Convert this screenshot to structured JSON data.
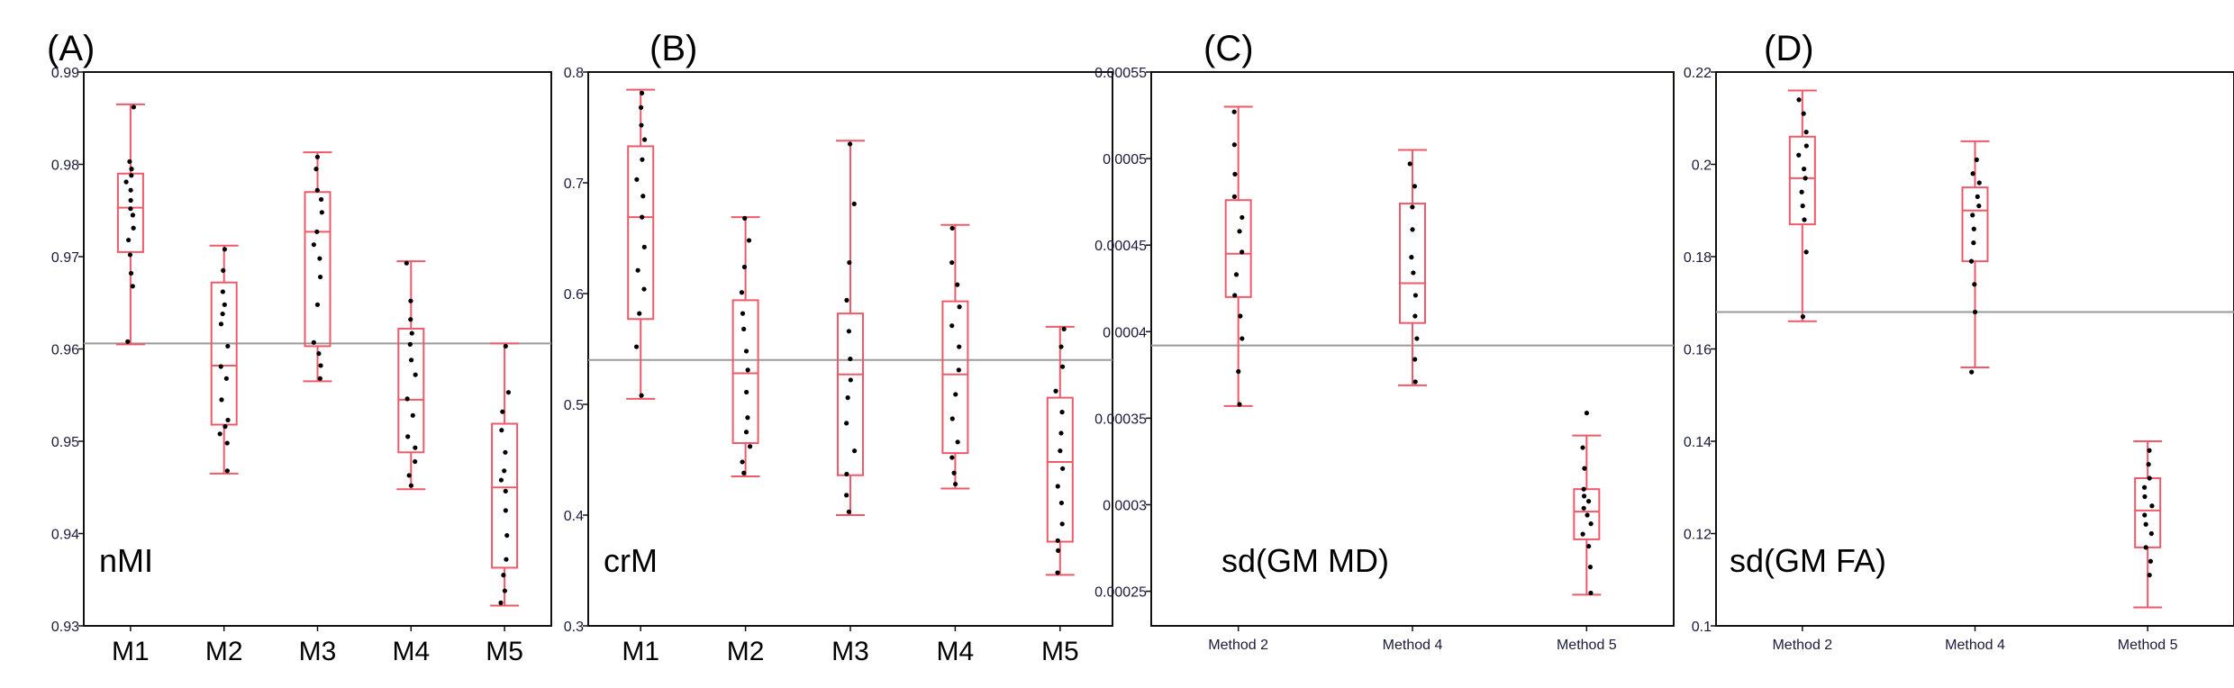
{
  "figure": {
    "colors": {
      "box": "#ef5a6a",
      "ref_line": "#9a9a9a",
      "frame": "#111111",
      "point": "#000000"
    },
    "panels": [
      {
        "panel_label": "(A)",
        "metric_label": "nMI",
        "chart_data": {
          "type": "box",
          "categories": [
            "M1",
            "M2",
            "M3",
            "M4",
            "M5"
          ],
          "ylim": [
            0.93,
            0.99
          ],
          "yticks": [
            0.93,
            0.94,
            0.95,
            0.96,
            0.97,
            0.98,
            0.99
          ],
          "ytick_labels": [
            "0.93",
            "0.94",
            "0.95",
            "0.96",
            "0.97",
            "0.98",
            "0.99"
          ],
          "reference_line": 0.9606,
          "boxes": [
            {
              "min": 0.9605,
              "q1": 0.9705,
              "median": 0.9753,
              "q3": 0.979,
              "max": 0.9865
            },
            {
              "min": 0.9465,
              "q1": 0.9518,
              "median": 0.9582,
              "q3": 0.9672,
              "max": 0.9712
            },
            {
              "min": 0.9565,
              "q1": 0.9603,
              "median": 0.9727,
              "q3": 0.977,
              "max": 0.9813
            },
            {
              "min": 0.9448,
              "q1": 0.9488,
              "median": 0.9545,
              "q3": 0.9622,
              "max": 0.9695
            },
            {
              "min": 0.9322,
              "q1": 0.9363,
              "median": 0.945,
              "q3": 0.9519,
              "max": 0.9606
            }
          ],
          "points": [
            [
              0.9608,
              0.9668,
              0.9682,
              0.9702,
              0.9718,
              0.9731,
              0.9745,
              0.9752,
              0.9761,
              0.9772,
              0.9781,
              0.9788,
              0.9795,
              0.9803,
              0.9862
            ],
            [
              0.9468,
              0.9498,
              0.9508,
              0.9516,
              0.9523,
              0.9545,
              0.9568,
              0.9581,
              0.9603,
              0.9627,
              0.9638,
              0.9648,
              0.9662,
              0.9685,
              0.9708
            ],
            [
              0.9568,
              0.9582,
              0.9595,
              0.9607,
              0.9648,
              0.9678,
              0.9698,
              0.9713,
              0.9727,
              0.9748,
              0.9762,
              0.9772,
              0.9795,
              0.9808
            ],
            [
              0.9452,
              0.9463,
              0.9478,
              0.9493,
              0.9505,
              0.9528,
              0.9546,
              0.9572,
              0.9588,
              0.9605,
              0.9617,
              0.9632,
              0.9652,
              0.9693
            ],
            [
              0.9325,
              0.9338,
              0.9355,
              0.9372,
              0.9398,
              0.9425,
              0.9446,
              0.9458,
              0.9468,
              0.9488,
              0.9512,
              0.9532,
              0.9553,
              0.9603
            ]
          ]
        }
      },
      {
        "panel_label": "(B)",
        "metric_label": "crM",
        "chart_data": {
          "type": "box",
          "categories": [
            "M1",
            "M2",
            "M3",
            "M4",
            "M5"
          ],
          "ylim": [
            0.3,
            0.8
          ],
          "yticks": [
            0.3,
            0.4,
            0.5,
            0.6,
            0.7,
            0.8
          ],
          "ytick_labels": [
            "0.3",
            "0.4",
            "0.5",
            "0.6",
            "0.7",
            "0.8"
          ],
          "reference_line": 0.54,
          "boxes": [
            {
              "min": 0.505,
              "q1": 0.577,
              "median": 0.669,
              "q3": 0.733,
              "max": 0.784
            },
            {
              "min": 0.435,
              "q1": 0.465,
              "median": 0.528,
              "q3": 0.594,
              "max": 0.669
            },
            {
              "min": 0.4,
              "q1": 0.436,
              "median": 0.527,
              "q3": 0.582,
              "max": 0.738
            },
            {
              "min": 0.424,
              "q1": 0.456,
              "median": 0.527,
              "q3": 0.593,
              "max": 0.662
            },
            {
              "min": 0.346,
              "q1": 0.376,
              "median": 0.448,
              "q3": 0.506,
              "max": 0.57
            }
          ],
          "points": [
            [
              0.508,
              0.552,
              0.582,
              0.604,
              0.621,
              0.642,
              0.669,
              0.688,
              0.703,
              0.721,
              0.739,
              0.752,
              0.768,
              0.781
            ],
            [
              0.438,
              0.448,
              0.462,
              0.475,
              0.488,
              0.511,
              0.531,
              0.548,
              0.568,
              0.582,
              0.601,
              0.624,
              0.648,
              0.668
            ],
            [
              0.403,
              0.418,
              0.437,
              0.458,
              0.483,
              0.506,
              0.522,
              0.541,
              0.566,
              0.594,
              0.628,
              0.681,
              0.735
            ],
            [
              0.428,
              0.438,
              0.452,
              0.466,
              0.487,
              0.509,
              0.531,
              0.552,
              0.571,
              0.588,
              0.608,
              0.628,
              0.659
            ],
            [
              0.348,
              0.368,
              0.377,
              0.392,
              0.411,
              0.426,
              0.442,
              0.458,
              0.474,
              0.493,
              0.512,
              0.534,
              0.552,
              0.568
            ]
          ]
        }
      },
      {
        "panel_label": "(C)",
        "metric_label": "sd(GM MD)",
        "chart_data": {
          "type": "box",
          "categories": [
            "Method 2",
            "Method 4",
            "Method 5"
          ],
          "ylim": [
            0.00023,
            0.00055
          ],
          "yticks": [
            0.00025,
            0.0003,
            0.00035,
            0.0004,
            0.00045,
            0.0005,
            0.00055
          ],
          "ytick_labels": [
            "0.00025",
            "0.0003",
            "0.00035",
            "0.0004",
            "0.00045",
            "0.0005",
            "0.00055"
          ],
          "reference_line": 0.000392,
          "boxes": [
            {
              "min": 0.000357,
              "q1": 0.00042,
              "median": 0.000445,
              "q3": 0.000476,
              "max": 0.00053
            },
            {
              "min": 0.000369,
              "q1": 0.000405,
              "median": 0.000428,
              "q3": 0.000474,
              "max": 0.000505
            },
            {
              "min": 0.000248,
              "q1": 0.00028,
              "median": 0.000296,
              "q3": 0.000309,
              "max": 0.00034
            }
          ],
          "points": [
            [
              0.000358,
              0.000377,
              0.000396,
              0.000409,
              0.000421,
              0.000433,
              0.000446,
              0.000458,
              0.000466,
              0.000478,
              0.000491,
              0.000508,
              0.000527
            ],
            [
              0.000371,
              0.000384,
              0.000396,
              0.000409,
              0.000421,
              0.000434,
              0.000443,
              0.000459,
              0.000472,
              0.000484,
              0.000497
            ],
            [
              0.000249,
              0.000264,
              0.000276,
              0.000283,
              0.000289,
              0.000294,
              0.000298,
              0.000302,
              0.000305,
              0.000309,
              0.000321,
              0.000333,
              0.000353
            ]
          ]
        }
      },
      {
        "panel_label": "(D)",
        "metric_label": "sd(GM FA)",
        "chart_data": {
          "type": "box",
          "categories": [
            "Method 2",
            "Method 4",
            "Method 5"
          ],
          "ylim": [
            0.1,
            0.22
          ],
          "yticks": [
            0.1,
            0.12,
            0.14,
            0.16,
            0.18,
            0.2,
            0.22
          ],
          "ytick_labels": [
            "0.1",
            "0.12",
            "0.14",
            "0.16",
            "0.18",
            "0.2",
            "0.22"
          ],
          "reference_line": 0.168,
          "boxes": [
            {
              "min": 0.166,
              "q1": 0.187,
              "median": 0.197,
              "q3": 0.206,
              "max": 0.216
            },
            {
              "min": 0.156,
              "q1": 0.179,
              "median": 0.19,
              "q3": 0.195,
              "max": 0.205
            },
            {
              "min": 0.104,
              "q1": 0.117,
              "median": 0.125,
              "q3": 0.132,
              "max": 0.14
            }
          ],
          "points": [
            [
              0.167,
              0.181,
              0.188,
              0.191,
              0.194,
              0.197,
              0.199,
              0.202,
              0.204,
              0.207,
              0.211,
              0.214
            ],
            [
              0.155,
              0.168,
              0.174,
              0.179,
              0.183,
              0.186,
              0.189,
              0.191,
              0.193,
              0.196,
              0.198,
              0.201
            ],
            [
              0.111,
              0.114,
              0.117,
              0.12,
              0.122,
              0.124,
              0.126,
              0.128,
              0.13,
              0.132,
              0.135,
              0.138
            ]
          ]
        }
      }
    ]
  }
}
